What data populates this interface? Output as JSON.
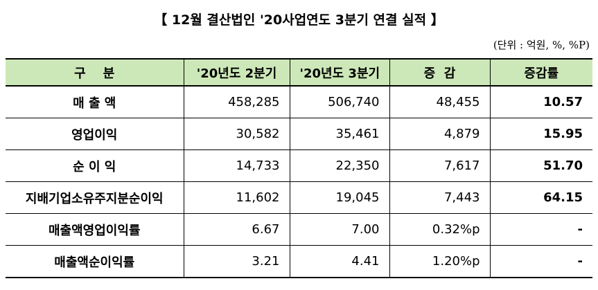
{
  "header": {
    "title": "【 12월 결산법인 '20사업연도 3분기 연결 실적 】",
    "unit": "(단위 : 억원, %, %P)"
  },
  "table": {
    "columns": [
      "구    분",
      "'20년도 2분기",
      "'20년도 3분기",
      "증  감",
      "증감률"
    ],
    "rows": [
      [
        "매 출 액",
        "458,285",
        "506,740",
        "48,455",
        "10.57"
      ],
      [
        "영업이익",
        "30,582",
        "35,461",
        "4,879",
        "15.95"
      ],
      [
        "순 이 익",
        "14,733",
        "22,350",
        "7,617",
        "51.70"
      ],
      [
        "지배기업소유주지분순이익",
        "11,602",
        "19,045",
        "7,443",
        "64.15"
      ],
      [
        "매출액영업이익률",
        "6.67",
        "7.00",
        "0.32%p",
        "-"
      ],
      [
        "매출액순이익률",
        "3.21",
        "4.41",
        "1.20%p",
        "-"
      ]
    ]
  }
}
